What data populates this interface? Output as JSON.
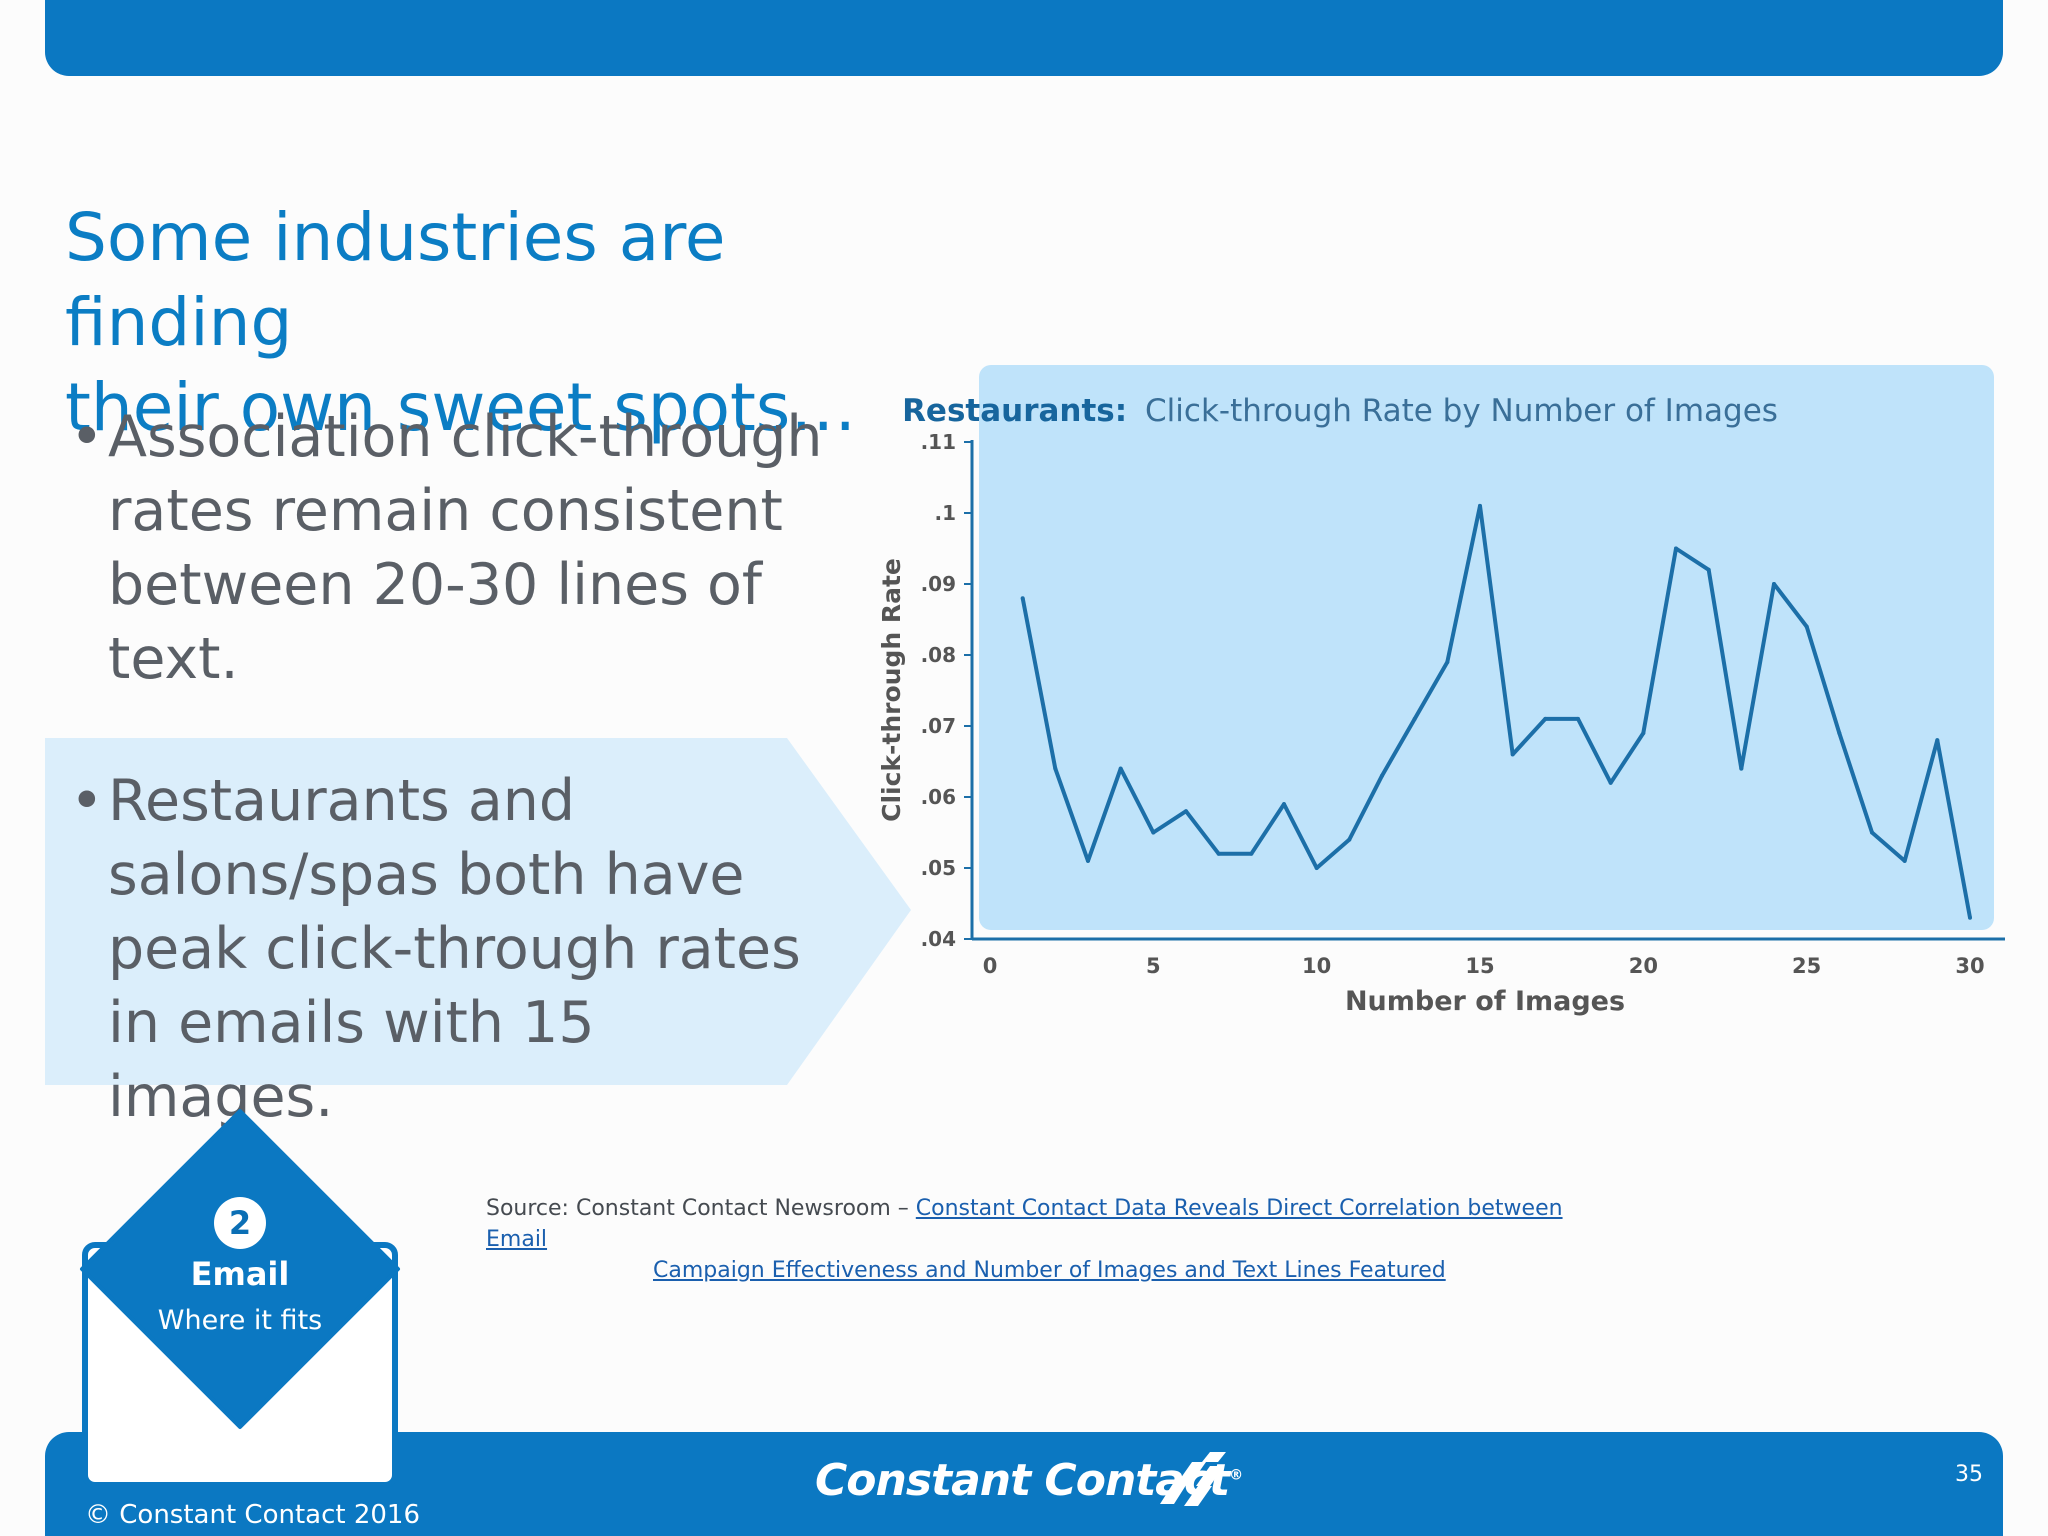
{
  "slide": {
    "title_line1": "Some industries are finding",
    "title_line2": "their own sweet spots…",
    "bullet_char": "•",
    "bullet1": "Association click-through rates remain consistent between 20-30 lines of text.",
    "bullet2": "Restaurants and salons/spas both have peak click-through rates in emails with 15 images.",
    "source_prefix": "Source: Constant Contact Newsroom – ",
    "source_link_line1": "Constant Contact Data Reveals Direct Correlation between Email",
    "source_link_line2": "Campaign Effectiveness and Number of Images and Text Lines Featured",
    "badge_number": "2",
    "badge_title": "Email",
    "badge_subtitle": "Where it fits",
    "copyright": "© Constant Contact 2016",
    "brand": "Constant Contact",
    "brand_mark": "®",
    "page_number": "35"
  },
  "colors": {
    "brand_blue": "#0b78c2",
    "title_blue": "#0b7dc4",
    "chart_bg": "#bfe3fa",
    "line": "#1c6fa8",
    "callout_bg": "#dbeefb"
  },
  "chart_data": {
    "type": "line",
    "title_bold": "Restaurants:",
    "title_rest": "Click-through Rate by Number of Images",
    "xlabel": "Number of Images",
    "ylabel": "Click-through Rate",
    "xlim": [
      0,
      30
    ],
    "ylim": [
      0.04,
      0.11
    ],
    "x_ticks": [
      "0",
      "5",
      "10",
      "15",
      "20",
      "25",
      "30"
    ],
    "x_tick_values": [
      0,
      5,
      10,
      15,
      20,
      25,
      30
    ],
    "y_ticks": [
      ".04",
      ".05",
      ".06",
      ".07",
      ".08",
      ".09",
      ".1",
      ".11"
    ],
    "y_tick_values": [
      0.04,
      0.05,
      0.06,
      0.07,
      0.08,
      0.09,
      0.1,
      0.11
    ],
    "grid": false,
    "series": [
      {
        "x": [
          1,
          2,
          3,
          4,
          5,
          6,
          7,
          8,
          9,
          10,
          11,
          12,
          13,
          14,
          15,
          16,
          17,
          18,
          19,
          20,
          21,
          22,
          23,
          24,
          25,
          26,
          27,
          28,
          29,
          30
        ],
        "y": [
          0.088,
          0.064,
          0.051,
          0.064,
          0.055,
          0.058,
          0.052,
          0.052,
          0.059,
          0.05,
          0.054,
          0.063,
          0.071,
          0.079,
          0.101,
          0.066,
          0.071,
          0.071,
          0.062,
          0.069,
          0.095,
          0.092,
          0.064,
          0.09,
          0.084,
          0.069,
          0.055,
          0.051,
          0.068,
          0.043
        ]
      }
    ]
  }
}
